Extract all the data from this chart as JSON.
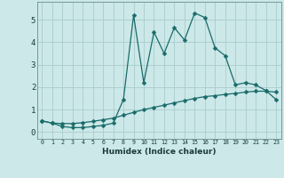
{
  "xlabel": "Humidex (Indice chaleur)",
  "background_color": "#cce8e8",
  "line_color": "#1a6b6b",
  "grid_color": "#aacccc",
  "xlim": [
    -0.5,
    23.5
  ],
  "ylim": [
    -0.3,
    5.8
  ],
  "xticks": [
    0,
    1,
    2,
    3,
    4,
    5,
    6,
    7,
    8,
    9,
    10,
    11,
    12,
    13,
    14,
    15,
    16,
    17,
    18,
    19,
    20,
    21,
    22,
    23
  ],
  "yticks": [
    0,
    1,
    2,
    3,
    4,
    5
  ],
  "line1_x": [
    0,
    1,
    2,
    3,
    4,
    5,
    6,
    7,
    8,
    9,
    10,
    11,
    12,
    13,
    14,
    15,
    16,
    17,
    18,
    19,
    20,
    21,
    22,
    23
  ],
  "line1_y": [
    0.5,
    0.4,
    0.25,
    0.2,
    0.2,
    0.25,
    0.3,
    0.4,
    1.45,
    5.2,
    2.2,
    4.45,
    3.5,
    4.65,
    4.1,
    5.3,
    5.1,
    3.75,
    3.4,
    2.1,
    2.2,
    2.1,
    1.85,
    1.45
  ],
  "line2_x": [
    0,
    1,
    2,
    3,
    4,
    5,
    6,
    7,
    8,
    9,
    10,
    11,
    12,
    13,
    14,
    15,
    16,
    17,
    18,
    19,
    20,
    21,
    22,
    23
  ],
  "line2_y": [
    0.5,
    0.4,
    0.38,
    0.38,
    0.42,
    0.48,
    0.55,
    0.62,
    0.75,
    0.88,
    1.0,
    1.1,
    1.2,
    1.3,
    1.4,
    1.5,
    1.58,
    1.62,
    1.68,
    1.72,
    1.78,
    1.82,
    1.82,
    1.78
  ],
  "markersize": 2.5,
  "linewidth": 0.9
}
